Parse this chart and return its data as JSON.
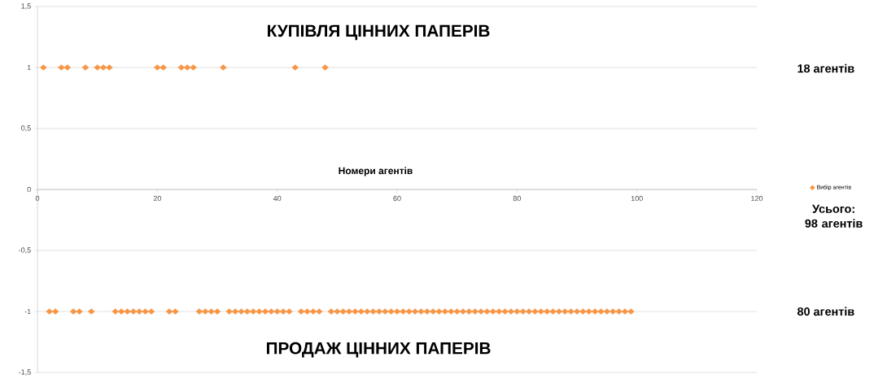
{
  "chart_data": {
    "type": "scatter",
    "xlabel": "Номери агентів",
    "annotations": [
      "КУПІВЛЯ ЦІННИХ ПАПЕРІВ",
      "ПРОДАЖ ЦІННИХ ПАПЕРІВ",
      "18 агентів",
      "Усього: 98 агентів",
      "80 агентів"
    ],
    "series": [
      {
        "name": "Вибір агентів",
        "color": "#f79646",
        "marker": "diamond",
        "x": [
          1,
          2,
          3,
          4,
          5,
          6,
          7,
          8,
          9,
          10,
          11,
          12,
          13,
          14,
          15,
          16,
          17,
          18,
          19,
          20,
          21,
          22,
          23,
          24,
          25,
          26,
          27,
          28,
          29,
          30,
          31,
          32,
          33,
          34,
          35,
          36,
          37,
          38,
          39,
          40,
          41,
          42,
          43,
          44,
          45,
          46,
          47,
          48,
          49,
          50,
          51,
          52,
          53,
          54,
          55,
          56,
          57,
          58,
          59,
          60,
          61,
          62,
          63,
          64,
          65,
          66,
          67,
          68,
          69,
          70,
          71,
          72,
          73,
          74,
          75,
          76,
          77,
          78,
          79,
          80,
          81,
          82,
          83,
          84,
          85,
          86,
          87,
          88,
          89,
          90,
          91,
          92,
          93,
          94,
          95,
          96,
          97,
          98,
          99
        ],
        "values": [
          1,
          -1,
          -1,
          1,
          1,
          -1,
          -1,
          1,
          -1,
          1,
          1,
          1,
          -1,
          -1,
          -1,
          -1,
          -1,
          -1,
          -1,
          1,
          1,
          -1,
          -1,
          1,
          1,
          1,
          -1,
          -1,
          -1,
          -1,
          1,
          -1,
          -1,
          -1,
          -1,
          -1,
          -1,
          -1,
          -1,
          -1,
          -1,
          -1,
          1,
          -1,
          -1,
          -1,
          -1,
          1,
          -1,
          -1,
          -1,
          -1,
          -1,
          -1,
          -1,
          -1,
          -1,
          -1,
          -1,
          -1,
          -1,
          -1,
          -1,
          -1,
          -1,
          -1,
          -1,
          -1,
          -1,
          -1,
          -1,
          -1,
          -1,
          -1,
          -1,
          -1,
          -1,
          -1,
          -1,
          -1,
          -1,
          -1,
          -1,
          -1,
          -1,
          -1,
          -1,
          -1,
          -1,
          -1,
          -1,
          -1,
          -1,
          -1,
          -1,
          -1,
          -1,
          -1,
          -1
        ]
      }
    ],
    "xlim": [
      0,
      120
    ],
    "xticks": [
      0,
      20,
      40,
      60,
      80,
      100,
      120
    ],
    "ylim": [
      -1.5,
      1.5
    ],
    "yticks": [
      {
        "value": -1.5,
        "label": "-1,5"
      },
      -1,
      {
        "value": -0.5,
        "label": "-0,5"
      },
      0,
      {
        "value": 0.5,
        "label": "0,5"
      },
      1,
      {
        "value": 1.5,
        "label": "1,5"
      }
    ],
    "grid": "y",
    "legend": "right"
  }
}
